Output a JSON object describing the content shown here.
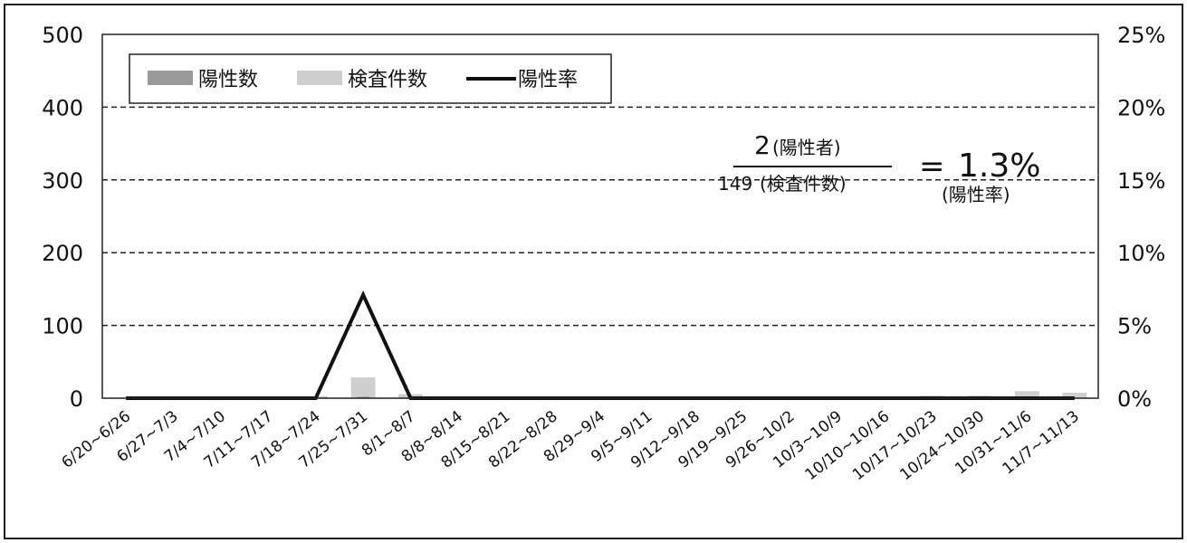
{
  "chart_data": {
    "type": "bar",
    "title": "",
    "xlabel": "",
    "ylabel": "",
    "categories": [
      "6/20~6/26",
      "6/27~7/3",
      "7/4~7/10",
      "7/11~7/17",
      "7/18~7/24",
      "7/25~7/31",
      "8/1~8/7",
      "8/8~8/14",
      "8/15~8/21",
      "8/22~8/28",
      "8/29~9/4",
      "9/5~9/11",
      "9/12~9/18",
      "9/19~9/25",
      "9/26~10/2",
      "10/3~10/9",
      "10/10~10/16",
      "10/17~10/23",
      "10/24~10/30",
      "10/31~11/6",
      "11/7~11/13"
    ],
    "ylim": [
      0,
      500
    ],
    "y_ticks": [
      "0",
      "100",
      "200",
      "300",
      "400",
      "500"
    ],
    "y2lim": [
      0,
      25
    ],
    "y2_ticks": [
      "0%",
      "5%",
      "10%",
      "15%",
      "20%",
      "25%"
    ],
    "grid": true,
    "legend_position": "top-left",
    "series": [
      {
        "name": "陽性数",
        "kind": "bar",
        "axis": "left",
        "color": "#9a9a9a",
        "values": [
          0,
          0,
          0,
          0,
          0,
          2,
          0,
          0,
          0,
          0,
          0,
          0,
          0,
          0,
          0,
          0,
          0,
          0,
          0,
          0,
          0
        ]
      },
      {
        "name": "検査件数",
        "kind": "bar",
        "axis": "left",
        "color": "#cfcfcf",
        "values": [
          0,
          0,
          0,
          0,
          2,
          28,
          5,
          0,
          0,
          0,
          0,
          0,
          0,
          0,
          0,
          0,
          0,
          3,
          3,
          9,
          7
        ]
      },
      {
        "name": "陽性率",
        "kind": "line",
        "axis": "right",
        "color": "#111111",
        "values": [
          0,
          0,
          0,
          0,
          0,
          7.1,
          0,
          0,
          0,
          0,
          0,
          0,
          0,
          0,
          0,
          0,
          0,
          0,
          0,
          0,
          0
        ]
      }
    ],
    "annotation": {
      "numerator_value": "2",
      "numerator_label": "(陽性者)",
      "denominator_value": "149",
      "denominator_label": "(検査件数)",
      "equals": "=",
      "result": "1.3%",
      "result_label": "(陽性率)"
    }
  }
}
